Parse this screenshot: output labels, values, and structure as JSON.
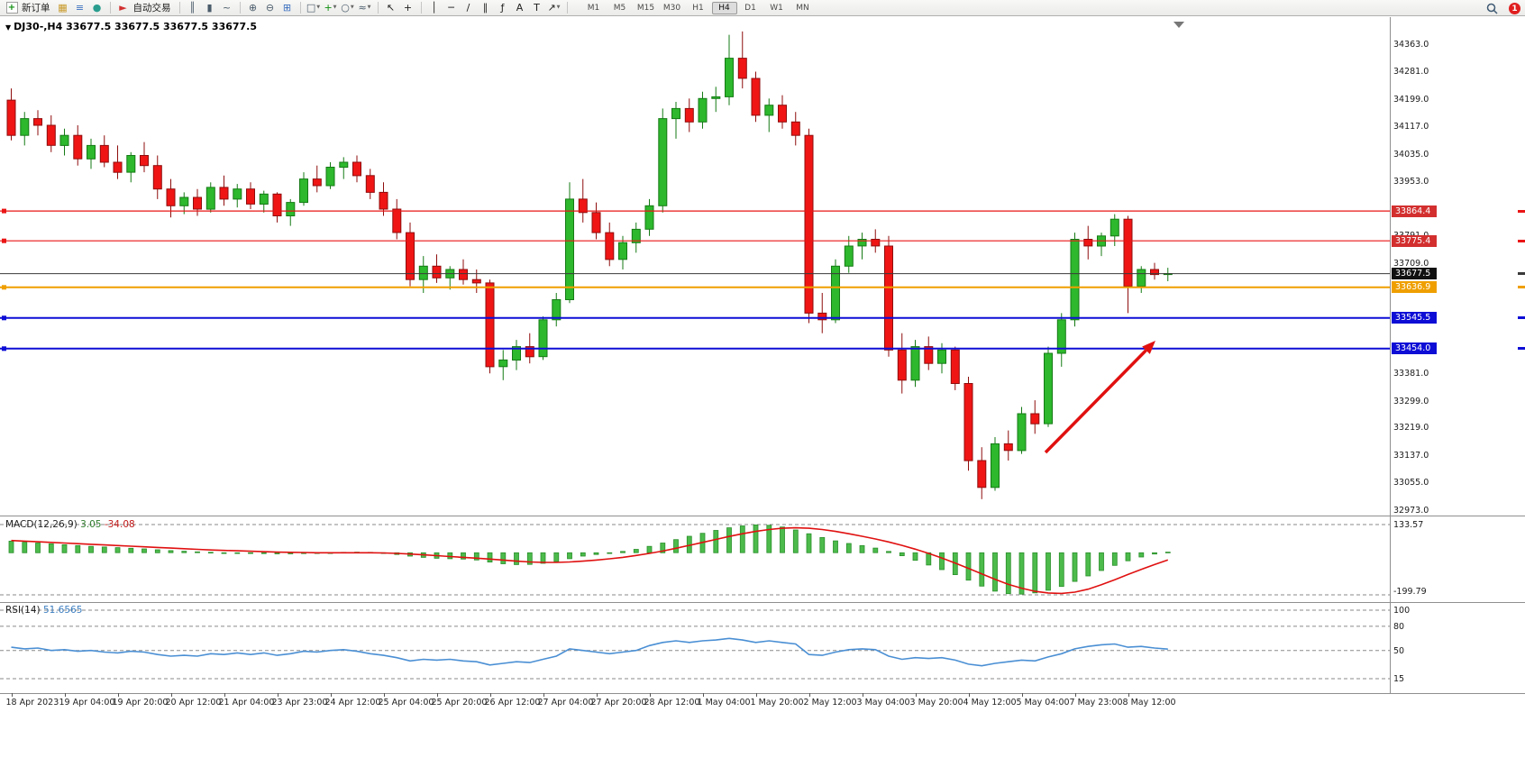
{
  "toolbar": {
    "caret_glyph": "▼",
    "items": [
      {
        "type": "icon",
        "name": "new-order-icon",
        "glyph": "+",
        "color": "#0f8f0f",
        "box": true
      },
      {
        "type": "button",
        "name": "new-order-button",
        "label": "新订单"
      },
      {
        "type": "icon",
        "name": "chart-window-icon",
        "glyph": "▦",
        "color": "#c89a2a"
      },
      {
        "type": "icon",
        "name": "market-watch-icon",
        "glyph": "≡",
        "color": "#3a6fbf"
      },
      {
        "type": "icon",
        "name": "navigator-icon",
        "glyph": "●",
        "color": "#2a9d8f"
      },
      {
        "type": "sep"
      },
      {
        "type": "icon",
        "name": "autotrade-icon",
        "glyph": "►",
        "color": "#d23030"
      },
      {
        "type": "button",
        "name": "autotrade-button",
        "label": "自动交易"
      },
      {
        "type": "sep"
      },
      {
        "type": "icon",
        "name": "bar-chart-icon",
        "glyph": "║",
        "color": "#4a5b6a"
      },
      {
        "type": "icon",
        "name": "candlestick-chart-icon",
        "glyph": "▮",
        "color": "#4a5b6a"
      },
      {
        "type": "icon",
        "name": "line-chart-icon",
        "glyph": "~",
        "color": "#4a5b6a"
      },
      {
        "type": "sep"
      },
      {
        "type": "icon",
        "name": "zoom-in-icon",
        "glyph": "⊕",
        "color": "#4a5b6a"
      },
      {
        "type": "icon",
        "name": "zoom-out-icon",
        "glyph": "⊖",
        "color": "#4a5b6a"
      },
      {
        "type": "icon",
        "name": "tile-windows-icon",
        "glyph": "⊞",
        "color": "#3a6fbf"
      },
      {
        "type": "sep"
      },
      {
        "type": "icon",
        "name": "new-chart-icon",
        "glyph": "□",
        "color": "#4a5b6a",
        "caret": true
      },
      {
        "type": "icon",
        "name": "indicators-icon",
        "glyph": "+",
        "color": "#0f8f0f",
        "caret": true
      },
      {
        "type": "icon",
        "name": "periods-icon",
        "glyph": "○",
        "color": "#4a5b6a",
        "caret": true
      },
      {
        "type": "icon",
        "name": "templates-icon",
        "glyph": "≈",
        "color": "#4a5b6a",
        "caret": true
      },
      {
        "type": "sep"
      },
      {
        "type": "icon",
        "name": "cursor-icon",
        "glyph": "↖",
        "color": "#222222"
      },
      {
        "type": "icon",
        "name": "crosshair-icon",
        "glyph": "+",
        "color": "#222222"
      },
      {
        "type": "sep"
      },
      {
        "type": "icon",
        "name": "vertical-line-icon",
        "glyph": "│",
        "color": "#222222"
      },
      {
        "type": "icon",
        "name": "horizontal-line-icon",
        "glyph": "─",
        "color": "#222222"
      },
      {
        "type": "icon",
        "name": "trendline-icon",
        "glyph": "/",
        "color": "#222222"
      },
      {
        "type": "icon",
        "name": "channel-icon",
        "glyph": "∥",
        "color": "#222222"
      },
      {
        "type": "icon",
        "name": "fibonacci-icon",
        "glyph": "ƒ",
        "color": "#222222"
      },
      {
        "type": "icon",
        "name": "text-icon",
        "glyph": "A",
        "color": "#222222"
      },
      {
        "type": "icon",
        "name": "label-icon",
        "glyph": "T",
        "color": "#222222"
      },
      {
        "type": "icon",
        "name": "arrows-icon",
        "glyph": "↗",
        "color": "#222222",
        "caret": true
      },
      {
        "type": "sep"
      }
    ],
    "timeframes": {
      "items": [
        "M1",
        "M5",
        "M15",
        "M30",
        "H1",
        "H4",
        "D1",
        "W1",
        "MN"
      ],
      "active": "H4"
    },
    "notification_count": "1"
  },
  "chart": {
    "collapse_marker": "▼",
    "title": "DJ30-,H4 33677.5 33677.5 33677.5 33677.5",
    "symbol": "DJ30-",
    "period": "H4"
  },
  "hlines": [
    {
      "name": "resistance-line-33864",
      "price": 33864.4,
      "color": "#ea1515",
      "width": 1.2,
      "handle": true
    },
    {
      "name": "resistance-line-33775",
      "price": 33775.4,
      "color": "#ea1515",
      "width": 1.2,
      "handle": true
    },
    {
      "name": "current-price-line",
      "price": 33677.5,
      "color": "#3a3a3a",
      "width": 1,
      "handle": false
    },
    {
      "name": "pivot-line-33636",
      "price": 33636.9,
      "color": "#ef9f00",
      "width": 2,
      "handle": true
    },
    {
      "name": "support-line-33545",
      "price": 33545.5,
      "color": "#0d0dd6",
      "width": 2,
      "handle": true
    },
    {
      "name": "support-line-33454",
      "price": 33454.0,
      "color": "#0d0dd6",
      "width": 2,
      "handle": true
    }
  ],
  "price_axis": {
    "labels": [
      "34363.0",
      "34281.0",
      "34199.0",
      "34117.0",
      "34035.0",
      "33953.0",
      "33791.0",
      "33709.0",
      "33381.0",
      "33299.0",
      "33219.0",
      "33137.0",
      "33055.0",
      "32973.0"
    ],
    "badges": [
      {
        "text": "33864.4",
        "color": "#d32f2f",
        "price": 33864.4
      },
      {
        "text": "33775.4",
        "color": "#d32f2f",
        "price": 33775.4
      },
      {
        "text": "33677.5",
        "color": "#111111",
        "price": 33677.5
      },
      {
        "text": "33636.9",
        "color": "#ef9f00",
        "price": 33636.9
      },
      {
        "text": "33545.5",
        "color": "#0d0dd6",
        "price": 33545.5
      },
      {
        "text": "33454.0",
        "color": "#0d0dd6",
        "price": 33454.0
      }
    ]
  },
  "time_axis": {
    "labels": [
      "18 Apr 2023",
      "19 Apr 04:00",
      "19 Apr 20:00",
      "20 Apr 12:00",
      "21 Apr 04:00",
      "23 Apr 23:00",
      "24 Apr 12:00",
      "25 Apr 04:00",
      "25 Apr 20:00",
      "26 Apr 12:00",
      "27 Apr 04:00",
      "27 Apr 20:00",
      "28 Apr 12:00",
      "1 May 04:00",
      "1 May 20:00",
      "2 May 12:00",
      "3 May 04:00",
      "3 May 20:00",
      "4 May 12:00",
      "5 May 04:00",
      "7 May 23:00",
      "8 May 12:00"
    ]
  },
  "indicators": {
    "macd": {
      "name": "MACD(12,26,9)",
      "value_main": "3.05",
      "value_signal": "-34.08",
      "scale_max": "133.57",
      "scale_min": "-199.79",
      "histogram_color": "#4cbb4c",
      "signal_color": "#e01010"
    },
    "rsi": {
      "name": "RSI(14)",
      "value": "51.6565",
      "scale_labels": [
        "100",
        "80",
        "50",
        "15"
      ],
      "levels": [
        100,
        80,
        50,
        15
      ],
      "line_color": "#4a8fd4"
    }
  },
  "annotation": {
    "type": "arrow",
    "color": "#e01010"
  },
  "chart_data": {
    "type": "candlestick",
    "symbol": "DJ30-",
    "timeframe": "H4",
    "up_color": "#2db82d",
    "down_color": "#f01515",
    "y_axis": {
      "min": 32950,
      "max": 34440
    },
    "x_label_every_n_bars": 4,
    "candles": [
      [
        34195,
        34230,
        34075,
        34090
      ],
      [
        34090,
        34160,
        34060,
        34140
      ],
      [
        34140,
        34165,
        34090,
        34120
      ],
      [
        34120,
        34150,
        34040,
        34060
      ],
      [
        34060,
        34110,
        34030,
        34090
      ],
      [
        34090,
        34120,
        34000,
        34020
      ],
      [
        34020,
        34080,
        33990,
        34060
      ],
      [
        34060,
        34090,
        33995,
        34010
      ],
      [
        34010,
        34060,
        33960,
        33980
      ],
      [
        33980,
        34040,
        33950,
        34030
      ],
      [
        34030,
        34070,
        33980,
        34000
      ],
      [
        34000,
        34030,
        33900,
        33930
      ],
      [
        33930,
        33960,
        33845,
        33880
      ],
      [
        33880,
        33920,
        33855,
        33905
      ],
      [
        33905,
        33930,
        33850,
        33870
      ],
      [
        33870,
        33950,
        33860,
        33935
      ],
      [
        33935,
        33970,
        33880,
        33900
      ],
      [
        33900,
        33945,
        33875,
        33930
      ],
      [
        33930,
        33950,
        33870,
        33885
      ],
      [
        33885,
        33925,
        33860,
        33915
      ],
      [
        33915,
        33920,
        33830,
        33850
      ],
      [
        33850,
        33900,
        33820,
        33890
      ],
      [
        33890,
        33980,
        33880,
        33960
      ],
      [
        33960,
        34000,
        33920,
        33940
      ],
      [
        33940,
        34010,
        33930,
        33995
      ],
      [
        33995,
        34025,
        33960,
        34010
      ],
      [
        34010,
        34030,
        33950,
        33970
      ],
      [
        33970,
        33990,
        33900,
        33920
      ],
      [
        33920,
        33950,
        33850,
        33870
      ],
      [
        33870,
        33900,
        33780,
        33800
      ],
      [
        33800,
        33830,
        33640,
        33660
      ],
      [
        33660,
        33730,
        33620,
        33700
      ],
      [
        33700,
        33735,
        33650,
        33665
      ],
      [
        33665,
        33700,
        33630,
        33690
      ],
      [
        33690,
        33720,
        33645,
        33660
      ],
      [
        33660,
        33690,
        33620,
        33650
      ],
      [
        33650,
        33660,
        33380,
        33400
      ],
      [
        33400,
        33450,
        33360,
        33420
      ],
      [
        33420,
        33480,
        33390,
        33460
      ],
      [
        33460,
        33500,
        33410,
        33430
      ],
      [
        33430,
        33550,
        33420,
        33540
      ],
      [
        33540,
        33620,
        33520,
        33600
      ],
      [
        33600,
        33950,
        33590,
        33900
      ],
      [
        33900,
        33960,
        33830,
        33860
      ],
      [
        33860,
        33890,
        33780,
        33800
      ],
      [
        33800,
        33830,
        33700,
        33720
      ],
      [
        33720,
        33790,
        33690,
        33770
      ],
      [
        33770,
        33830,
        33740,
        33810
      ],
      [
        33810,
        33900,
        33790,
        33880
      ],
      [
        33880,
        34170,
        33860,
        34140
      ],
      [
        34140,
        34190,
        34080,
        34170
      ],
      [
        34170,
        34200,
        34100,
        34130
      ],
      [
        34130,
        34220,
        34110,
        34200
      ],
      [
        34200,
        34235,
        34160,
        34205
      ],
      [
        34205,
        34390,
        34180,
        34320
      ],
      [
        34320,
        34400,
        34230,
        34260
      ],
      [
        34260,
        34280,
        34130,
        34150
      ],
      [
        34150,
        34200,
        34100,
        34180
      ],
      [
        34180,
        34210,
        34110,
        34130
      ],
      [
        34130,
        34160,
        34060,
        34090
      ],
      [
        34090,
        34110,
        33530,
        33560
      ],
      [
        33560,
        33620,
        33500,
        33540
      ],
      [
        33540,
        33720,
        33530,
        33700
      ],
      [
        33700,
        33790,
        33680,
        33760
      ],
      [
        33760,
        33800,
        33720,
        33780
      ],
      [
        33780,
        33810,
        33740,
        33760
      ],
      [
        33760,
        33790,
        33430,
        33450
      ],
      [
        33450,
        33500,
        33320,
        33360
      ],
      [
        33360,
        33480,
        33340,
        33460
      ],
      [
        33460,
        33490,
        33390,
        33410
      ],
      [
        33410,
        33470,
        33380,
        33450
      ],
      [
        33450,
        33460,
        33330,
        33350
      ],
      [
        33350,
        33370,
        33090,
        33120
      ],
      [
        33120,
        33160,
        33005,
        33040
      ],
      [
        33040,
        33190,
        33030,
        33170
      ],
      [
        33170,
        33210,
        33120,
        33150
      ],
      [
        33150,
        33280,
        33140,
        33260
      ],
      [
        33260,
        33300,
        33200,
        33230
      ],
      [
        33230,
        33460,
        33220,
        33440
      ],
      [
        33440,
        33560,
        33400,
        33540
      ],
      [
        33540,
        33800,
        33520,
        33780
      ],
      [
        33780,
        33820,
        33720,
        33760
      ],
      [
        33760,
        33800,
        33730,
        33790
      ],
      [
        33790,
        33855,
        33760,
        33840
      ],
      [
        33840,
        33850,
        33560,
        33640
      ],
      [
        33640,
        33700,
        33620,
        33690
      ],
      [
        33690,
        33710,
        33660,
        33675
      ],
      [
        33675,
        33695,
        33655,
        33677.5
      ]
    ],
    "macd_histogram": [
      55,
      50,
      46,
      42,
      38,
      34,
      30,
      27,
      24,
      21,
      18,
      14,
      10,
      7,
      4,
      2,
      0,
      -2,
      -3,
      -4,
      -5,
      -5,
      -4,
      -2,
      0,
      2,
      3,
      2,
      -2,
      -8,
      -16,
      -22,
      -26,
      -28,
      -30,
      -34,
      -44,
      -52,
      -56,
      -55,
      -50,
      -42,
      -28,
      -16,
      -8,
      -2,
      6,
      16,
      30,
      46,
      62,
      78,
      92,
      106,
      118,
      127,
      132,
      130,
      122,
      108,
      90,
      72,
      56,
      44,
      34,
      22,
      6,
      -14,
      -36,
      -58,
      -80,
      -104,
      -130,
      -158,
      -182,
      -194,
      -196,
      -190,
      -178,
      -160,
      -136,
      -110,
      -84,
      -60,
      -38,
      -20,
      -6,
      3
    ],
    "macd_signal": [
      58,
      55,
      52,
      49,
      46,
      43,
      40,
      37,
      34,
      31,
      28,
      25,
      22,
      19,
      16,
      13,
      11,
      9,
      7,
      5,
      3,
      2,
      1,
      0,
      0,
      0,
      0,
      0,
      -1,
      -3,
      -6,
      -10,
      -14,
      -18,
      -22,
      -26,
      -30,
      -35,
      -40,
      -44,
      -46,
      -46,
      -44,
      -40,
      -35,
      -29,
      -22,
      -13,
      -3,
      8,
      21,
      35,
      49,
      63,
      77,
      90,
      101,
      110,
      116,
      118,
      116,
      110,
      101,
      90,
      78,
      65,
      51,
      35,
      17,
      -3,
      -25,
      -49,
      -74,
      -100,
      -126,
      -150,
      -168,
      -183,
      -191,
      -193,
      -187,
      -173,
      -152,
      -128,
      -103,
      -79,
      -56,
      -34
    ],
    "rsi_values": [
      54,
      52,
      53,
      50,
      51,
      49,
      50,
      48,
      47,
      49,
      48,
      45,
      43,
      44,
      43,
      46,
      45,
      47,
      45,
      47,
      44,
      46,
      49,
      48,
      50,
      51,
      49,
      46,
      44,
      41,
      37,
      39,
      38,
      39,
      37,
      36,
      32,
      34,
      36,
      35,
      39,
      43,
      52,
      50,
      48,
      46,
      48,
      50,
      56,
      60,
      62,
      60,
      62,
      63,
      65,
      63,
      60,
      62,
      60,
      58,
      45,
      44,
      48,
      51,
      52,
      51,
      43,
      39,
      41,
      40,
      41,
      38,
      33,
      31,
      34,
      36,
      38,
      37,
      42,
      46,
      52,
      55,
      57,
      58,
      54,
      55,
      53,
      51.66
    ]
  }
}
